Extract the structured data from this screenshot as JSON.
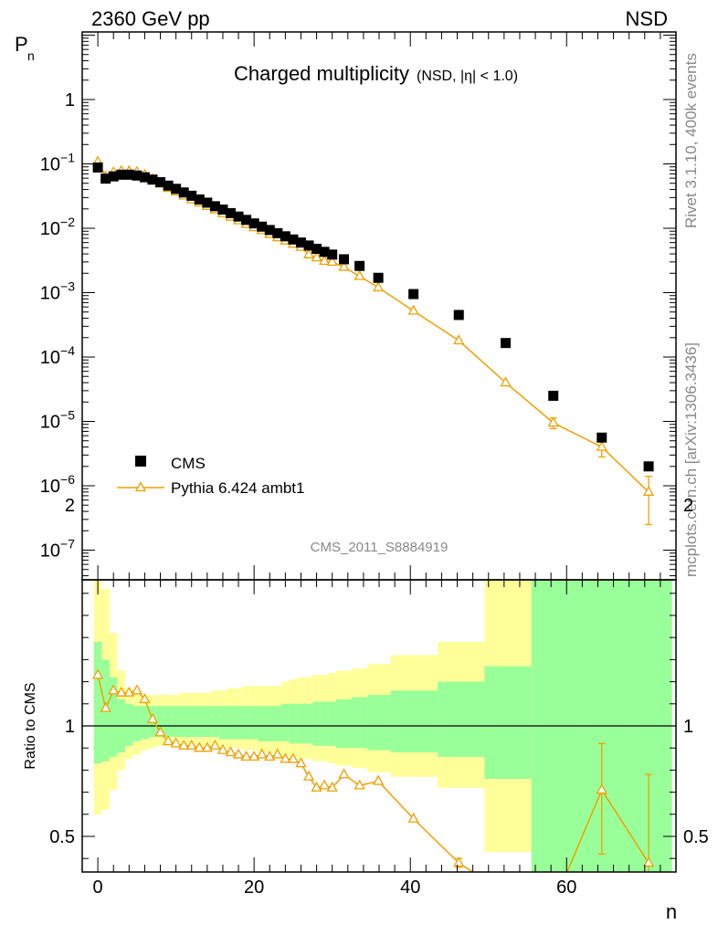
{
  "header": {
    "left": "2360 GeV pp",
    "right": "NSD"
  },
  "side_labels": {
    "top": "Rivet 3.1.10,  400k events",
    "bottom": "mcplots.cern.ch [arXiv:1306.3436]"
  },
  "analysis_id": "CMS_2011_S8884919",
  "colors": {
    "mc": "#f0a000",
    "green_band": "#99ff99",
    "yellow_band": "#ffff99",
    "data": "#000000"
  },
  "chart_data": [
    {
      "type": "scatter",
      "panel": "main",
      "title": "Charged multiplicity",
      "subtitle": "(NSD, |η| < 1.0)",
      "ylabel": "P_n",
      "xlabel": "n",
      "xlim": [
        -2,
        74
      ],
      "ylim": [
        4e-08,
        9
      ],
      "yscale": "log",
      "ytick_labels": [
        "1",
        "10^-1",
        "10^-2",
        "10^-3",
        "10^-4",
        "10^-5",
        "10^-6",
        "10^-7"
      ],
      "legend": "bottom-left",
      "series": [
        {
          "name": "CMS",
          "marker": "filled-square",
          "x": [
            0,
            1,
            2,
            3,
            4,
            5,
            6,
            7,
            8,
            9,
            10,
            11,
            12,
            13,
            14,
            15,
            16,
            17,
            18,
            19,
            20,
            21,
            22,
            23,
            24,
            25,
            26,
            27,
            28,
            29,
            30,
            31.5,
            33.5,
            35.9,
            40.4,
            46.2,
            52.2,
            58.3,
            64.5,
            70.5
          ],
          "y": [
            0.088,
            0.059,
            0.064,
            0.068,
            0.068,
            0.066,
            0.062,
            0.057,
            0.052,
            0.046,
            0.041,
            0.036,
            0.032,
            0.028,
            0.025,
            0.022,
            0.0195,
            0.0172,
            0.0152,
            0.0135,
            0.0119,
            0.0106,
            0.0094,
            0.0084,
            0.0075,
            0.0067,
            0.006,
            0.0054,
            0.0048,
            0.0043,
            0.0039,
            0.0033,
            0.0026,
            0.0017,
            0.00095,
            0.00045,
            0.000165,
            2.5e-05,
            5.6e-06,
            2e-06
          ]
        },
        {
          "name": "Pythia 6.424 ambt1",
          "marker": "open-triangle",
          "x": [
            0,
            1,
            2,
            3,
            4,
            5,
            6,
            7,
            8,
            9,
            10,
            11,
            12,
            13,
            14,
            15,
            16,
            17,
            18,
            19,
            20,
            21,
            22,
            23,
            24,
            25,
            26,
            27,
            28,
            29,
            30,
            31.5,
            33.5,
            35.9,
            40.4,
            46.2,
            52.2,
            58.3,
            64.5,
            70.5
          ],
          "y": [
            0.108,
            0.064,
            0.074,
            0.077,
            0.077,
            0.075,
            0.068,
            0.058,
            0.049,
            0.042,
            0.037,
            0.032,
            0.028,
            0.025,
            0.022,
            0.0195,
            0.017,
            0.015,
            0.0132,
            0.0116,
            0.0103,
            0.0093,
            0.0081,
            0.0072,
            0.0064,
            0.0057,
            0.0051,
            0.0039,
            0.0035,
            0.0031,
            0.003,
            0.0025,
            0.0018,
            0.0012,
            0.00052,
            0.00018,
            4e-05,
            9.5e-06,
            4e-06,
            8e-07
          ],
          "yerr_low": [
            0,
            0,
            0,
            0,
            0,
            0,
            0,
            0,
            0,
            0,
            0,
            0,
            0,
            0,
            0,
            0,
            0,
            0,
            0,
            0,
            0,
            0,
            0,
            0,
            0,
            0,
            0,
            0,
            0,
            0,
            0,
            0,
            0,
            0,
            0,
            0,
            0,
            1.8e-06,
            1.2e-06,
            5.5e-07
          ],
          "yerr_high": [
            0,
            0,
            0,
            0,
            0,
            0,
            0,
            0,
            0,
            0,
            0,
            0,
            0,
            0,
            0,
            0,
            0,
            0,
            0,
            0,
            0,
            0,
            0,
            0,
            0,
            0,
            0,
            0,
            0,
            0,
            0,
            0,
            0,
            0,
            0,
            0,
            0,
            1.8e-06,
            1.2e-06,
            6e-07
          ]
        }
      ]
    },
    {
      "type": "line",
      "panel": "ratio",
      "ylabel": "Ratio to CMS",
      "xlabel": "n",
      "xlim": [
        -2,
        74
      ],
      "ylim": [
        0.35,
        2.35
      ],
      "x_ticks": [
        0,
        20,
        40,
        60
      ],
      "y_ticks": [
        0.5,
        1,
        2
      ],
      "bands": [
        {
          "kind": "yellow",
          "edges": [
            -0.5,
            0.5,
            1.5,
            2.5,
            3.5,
            4.5,
            5.5,
            6.5,
            7.5,
            8.5,
            9.5,
            10.5,
            11.5,
            12.5,
            13.5,
            14.5,
            15.5,
            16.5,
            17.5,
            18.5,
            19.5,
            20.5,
            21.5,
            22.5,
            23.5,
            24.5,
            25.5,
            26.5,
            27.5,
            28.5,
            29.5,
            30.5,
            32.5,
            34.5,
            37.5,
            43.5,
            49.5,
            55.5,
            61.5,
            67.5,
            73.5
          ],
          "low": [
            0.6,
            0.62,
            0.71,
            0.8,
            0.85,
            0.87,
            0.89,
            0.9,
            0.91,
            0.91,
            0.91,
            0.91,
            0.91,
            0.91,
            0.91,
            0.9,
            0.9,
            0.9,
            0.9,
            0.89,
            0.89,
            0.88,
            0.88,
            0.87,
            0.86,
            0.86,
            0.85,
            0.85,
            0.84,
            0.84,
            0.83,
            0.82,
            0.81,
            0.79,
            0.77,
            0.72,
            0.43,
            0.3,
            0.3,
            0.3
          ],
          "high": [
            1.71,
            1.62,
            1.42,
            1.25,
            1.17,
            1.15,
            1.14,
            1.14,
            1.14,
            1.14,
            1.14,
            1.15,
            1.15,
            1.15,
            1.15,
            1.16,
            1.16,
            1.17,
            1.17,
            1.18,
            1.18,
            1.18,
            1.18,
            1.18,
            1.2,
            1.21,
            1.22,
            1.22,
            1.23,
            1.23,
            1.24,
            1.25,
            1.26,
            1.28,
            1.32,
            1.38,
            1.7,
            2.4,
            2.4,
            2.2
          ]
        },
        {
          "kind": "green",
          "edges": [
            -0.5,
            0.5,
            1.5,
            2.5,
            3.5,
            4.5,
            5.5,
            6.5,
            7.5,
            8.5,
            9.5,
            10.5,
            11.5,
            12.5,
            13.5,
            14.5,
            15.5,
            16.5,
            17.5,
            18.5,
            19.5,
            20.5,
            21.5,
            22.5,
            23.5,
            24.5,
            25.5,
            26.5,
            27.5,
            28.5,
            29.5,
            30.5,
            32.5,
            34.5,
            37.5,
            43.5,
            49.5,
            55.5,
            61.5,
            67.5,
            73.5
          ],
          "low": [
            0.83,
            0.84,
            0.86,
            0.88,
            0.91,
            0.93,
            0.94,
            0.95,
            0.95,
            0.95,
            0.95,
            0.95,
            0.95,
            0.95,
            0.95,
            0.95,
            0.94,
            0.94,
            0.94,
            0.94,
            0.94,
            0.93,
            0.93,
            0.93,
            0.93,
            0.92,
            0.92,
            0.92,
            0.91,
            0.91,
            0.91,
            0.9,
            0.9,
            0.89,
            0.88,
            0.86,
            0.76,
            0.3,
            0.3,
            0.3
          ],
          "high": [
            1.38,
            1.3,
            1.22,
            1.12,
            1.1,
            1.09,
            1.09,
            1.09,
            1.09,
            1.09,
            1.09,
            1.09,
            1.09,
            1.09,
            1.09,
            1.09,
            1.09,
            1.09,
            1.09,
            1.09,
            1.09,
            1.09,
            1.09,
            1.09,
            1.1,
            1.1,
            1.1,
            1.1,
            1.11,
            1.11,
            1.11,
            1.12,
            1.13,
            1.14,
            1.16,
            1.2,
            1.27,
            2.4,
            2.4,
            1.71
          ]
        }
      ],
      "series": [
        {
          "name": "Pythia 6.424 ambt1",
          "marker": "open-triangle",
          "x": [
            0,
            1,
            2,
            3,
            4,
            5,
            6,
            7,
            8,
            9,
            10,
            11,
            12,
            13,
            14,
            15,
            16,
            17,
            18,
            19,
            20,
            21,
            22,
            23,
            24,
            25,
            26,
            27,
            28,
            29,
            30,
            31.5,
            33.5,
            35.9,
            40.4,
            46.2,
            52.2,
            58.3,
            64.5,
            70.5
          ],
          "y": [
            1.23,
            1.08,
            1.16,
            1.15,
            1.15,
            1.16,
            1.12,
            1.03,
            0.97,
            0.93,
            0.92,
            0.91,
            0.91,
            0.9,
            0.9,
            0.91,
            0.89,
            0.88,
            0.87,
            0.86,
            0.86,
            0.87,
            0.86,
            0.87,
            0.85,
            0.85,
            0.83,
            0.77,
            0.72,
            0.73,
            0.72,
            0.78,
            0.73,
            0.75,
            0.58,
            0.38,
            0.24,
            0.19,
            0.71,
            0.38
          ],
          "yerr_low": [
            0,
            0,
            0,
            0,
            0,
            0,
            0,
            0,
            0,
            0,
            0,
            0,
            0,
            0,
            0,
            0,
            0,
            0,
            0,
            0,
            0,
            0,
            0,
            0,
            0,
            0,
            0,
            0,
            0,
            0,
            0,
            0,
            0,
            0,
            0,
            0.02,
            0.02,
            0.05,
            0.29,
            0.4
          ],
          "yerr_high": [
            0,
            0,
            0,
            0,
            0,
            0,
            0,
            0,
            0,
            0,
            0,
            0,
            0,
            0,
            0,
            0,
            0,
            0,
            0,
            0,
            0,
            0,
            0,
            0,
            0,
            0,
            0,
            0,
            0,
            0,
            0,
            0,
            0,
            0,
            0,
            0.02,
            0.02,
            0.05,
            0.21,
            0.4
          ]
        }
      ]
    }
  ]
}
